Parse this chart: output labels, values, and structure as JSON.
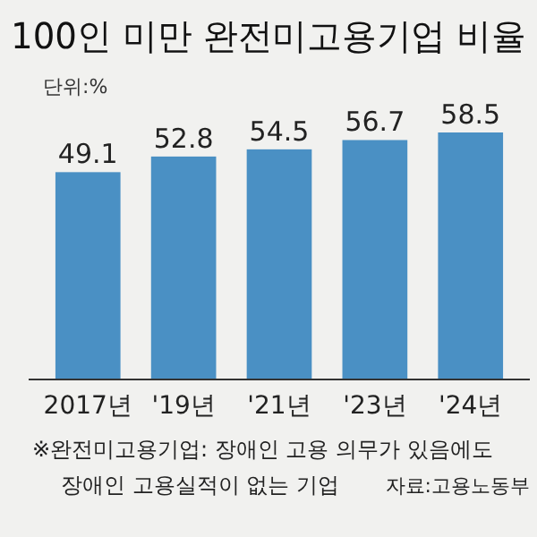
{
  "chart_data": {
    "type": "bar",
    "title": "100인 미만 완전미고용기업 비율",
    "categories": [
      "2017년",
      "'19년",
      "'21년",
      "'23년",
      "'24년"
    ],
    "values": [
      49.1,
      52.8,
      54.5,
      56.7,
      58.5
    ],
    "color": "#4a90c4",
    "data_labels": true,
    "annotations": [
      "단위:%",
      "※완전미고용기업: 장애인 고용 의무가 있음에도 장애인 고용실적이 없는 기업",
      "자료:고용노동부"
    ]
  }
}
